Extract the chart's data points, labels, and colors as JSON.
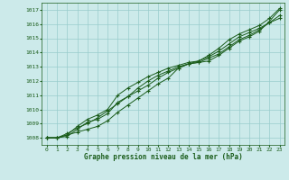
{
  "background_color": "#cceaea",
  "grid_color": "#99cccc",
  "line_color": "#1a5c1a",
  "xlabel": "Graphe pression niveau de la mer (hPa)",
  "xlim": [
    -0.5,
    23.5
  ],
  "ylim": [
    1007.5,
    1017.5
  ],
  "yticks": [
    1008,
    1009,
    1010,
    1011,
    1012,
    1013,
    1014,
    1015,
    1016,
    1017
  ],
  "xticks": [
    0,
    1,
    2,
    3,
    4,
    5,
    6,
    7,
    8,
    9,
    10,
    11,
    12,
    13,
    14,
    15,
    16,
    17,
    18,
    19,
    20,
    21,
    22,
    23
  ],
  "series": [
    [
      1008.0,
      1008.0,
      1008.2,
      1008.4,
      1008.6,
      1008.8,
      1009.2,
      1009.8,
      1010.3,
      1010.8,
      1011.3,
      1011.8,
      1012.2,
      1012.9,
      1013.2,
      1013.3,
      1013.4,
      1013.8,
      1014.3,
      1014.8,
      1015.1,
      1015.5,
      1016.2,
      1017.0
    ],
    [
      1008.0,
      1008.0,
      1008.1,
      1008.6,
      1009.1,
      1009.3,
      1009.7,
      1010.5,
      1010.9,
      1011.5,
      1012.0,
      1012.4,
      1012.7,
      1013.0,
      1013.2,
      1013.3,
      1013.6,
      1013.9,
      1014.4,
      1014.9,
      1015.2,
      1015.6,
      1016.1,
      1016.4
    ],
    [
      1008.0,
      1008.0,
      1008.3,
      1008.7,
      1009.0,
      1009.4,
      1009.9,
      1010.4,
      1010.9,
      1011.3,
      1011.7,
      1012.2,
      1012.6,
      1012.9,
      1013.2,
      1013.4,
      1013.7,
      1014.1,
      1014.6,
      1015.1,
      1015.4,
      1015.7,
      1016.1,
      1016.6
    ],
    [
      1008.0,
      1008.0,
      1008.2,
      1008.8,
      1009.3,
      1009.6,
      1010.0,
      1011.0,
      1011.5,
      1011.9,
      1012.3,
      1012.6,
      1012.9,
      1013.1,
      1013.3,
      1013.4,
      1013.8,
      1014.3,
      1014.9,
      1015.3,
      1015.6,
      1015.9,
      1016.4,
      1017.1
    ]
  ]
}
